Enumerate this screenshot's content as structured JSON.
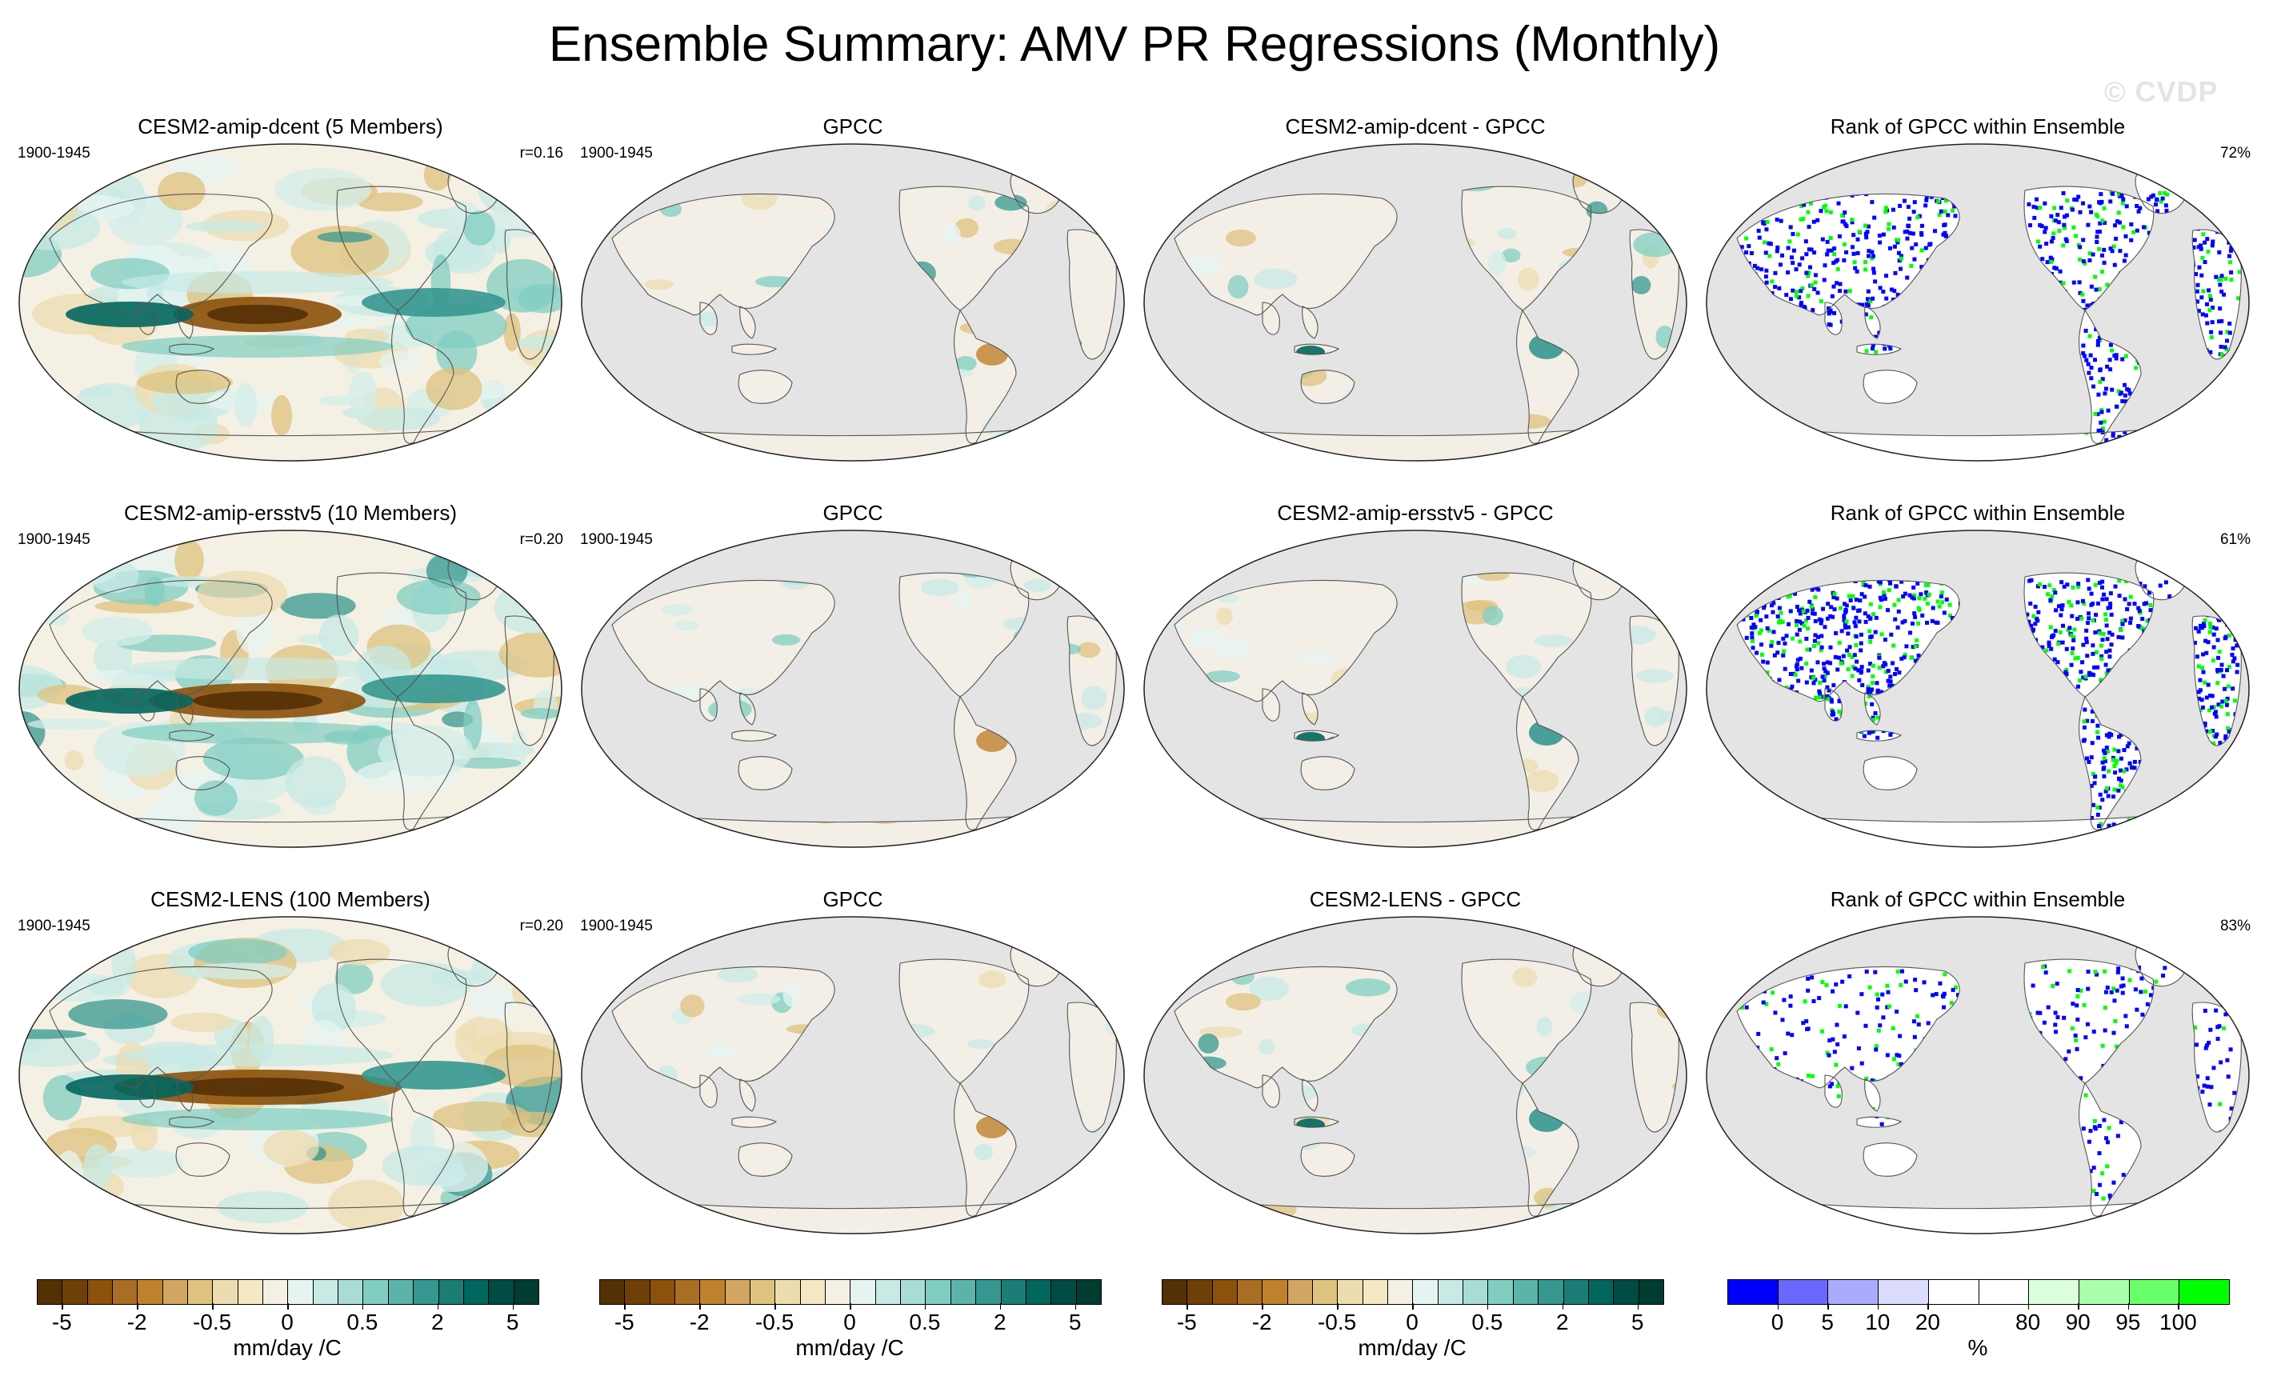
{
  "title": "Ensemble Summary: AMV PR Regressions (Monthly)",
  "watermark": "© CVDP",
  "rows": [
    {
      "model_title": "CESM2-amip-dcent (5 Members)",
      "model_period": "1900-1945",
      "model_corr": "r=0.16",
      "obs_title": "GPCC",
      "obs_period": "1900-1945",
      "diff_title": "CESM2-amip-dcent - GPCC",
      "rank_title": "Rank of GPCC within Ensemble",
      "rank_pct": "72%"
    },
    {
      "model_title": "CESM2-amip-ersstv5 (10 Members)",
      "model_period": "1900-1945",
      "model_corr": "r=0.20",
      "obs_title": "GPCC",
      "obs_period": "1900-1945",
      "diff_title": "CESM2-amip-ersstv5 - GPCC",
      "rank_title": "Rank of GPCC within Ensemble",
      "rank_pct": "61%"
    },
    {
      "model_title": "CESM2-LENS (100 Members)",
      "model_period": "1900-1945",
      "model_corr": "r=0.20",
      "obs_title": "GPCC",
      "obs_period": "1900-1945",
      "diff_title": "CESM2-LENS - GPCC",
      "rank_title": "Rank of GPCC within Ensemble",
      "rank_pct": "83%"
    }
  ],
  "colorbars": {
    "regression": {
      "unit": "mm/day /C",
      "tick_labels": [
        "-5",
        "-2",
        "-0.5",
        "0",
        "0.5",
        "2",
        "5"
      ],
      "colors": [
        "#543005",
        "#6f3f08",
        "#8c510a",
        "#a96e24",
        "#bf812d",
        "#d2a660",
        "#dfc27d",
        "#ecdcb0",
        "#f6e8c3",
        "#f5f0e4",
        "#e6f4f1",
        "#c7eae5",
        "#a8dcd4",
        "#80cdc1",
        "#5ab4a9",
        "#35978f",
        "#1a7e76",
        "#01665e",
        "#004b43",
        "#003c30"
      ]
    },
    "rank": {
      "unit": "%",
      "tick_labels": [
        "0",
        "5",
        "10",
        "20",
        "80",
        "90",
        "95",
        "100"
      ],
      "colors": [
        "#0000ff",
        "#6868ff",
        "#aaaaff",
        "#dcdcff",
        "#ffffff",
        "#ffffff",
        "#dcffdc",
        "#aaffaa",
        "#68ff68",
        "#00ff00"
      ]
    }
  },
  "chart_data": {
    "type": "heatmap",
    "title": "Ensemble Summary: AMV PR Regressions (Monthly)",
    "layout": "3 rows x 4 columns of global maps (Robinson-like projection)",
    "columns": [
      "Ensemble mean regression",
      "Observations (GPCC)",
      "Difference (ensemble - GPCC)",
      "Rank of GPCC within ensemble"
    ],
    "panels": [
      {
        "row": 1,
        "col": 1,
        "title": "CESM2-amip-dcent (5 Members)",
        "period": "1900-1945",
        "pattern_correlation": 0.16
      },
      {
        "row": 1,
        "col": 2,
        "title": "GPCC",
        "period": "1900-1945"
      },
      {
        "row": 1,
        "col": 3,
        "title": "CESM2-amip-dcent - GPCC"
      },
      {
        "row": 1,
        "col": 4,
        "title": "Rank of GPCC within Ensemble",
        "percent_area_within_10_90": 72
      },
      {
        "row": 2,
        "col": 1,
        "title": "CESM2-amip-ersstv5 (10 Members)",
        "period": "1900-1945",
        "pattern_correlation": 0.2
      },
      {
        "row": 2,
        "col": 2,
        "title": "GPCC",
        "period": "1900-1945"
      },
      {
        "row": 2,
        "col": 3,
        "title": "CESM2-amip-ersstv5 - GPCC"
      },
      {
        "row": 2,
        "col": 4,
        "title": "Rank of GPCC within Ensemble",
        "percent_area_within_10_90": 61
      },
      {
        "row": 3,
        "col": 1,
        "title": "CESM2-LENS (100 Members)",
        "period": "1900-1945",
        "pattern_correlation": 0.2
      },
      {
        "row": 3,
        "col": 2,
        "title": "GPCC",
        "period": "1900-1945"
      },
      {
        "row": 3,
        "col": 3,
        "title": "CESM2-LENS - GPCC"
      },
      {
        "row": 3,
        "col": 4,
        "title": "Rank of GPCC within Ensemble",
        "percent_area_within_10_90": 83
      }
    ],
    "regression_colorbar": {
      "unit": "mm/day /C",
      "ticks": [
        -5,
        -2,
        -0.5,
        0,
        0.5,
        2,
        5
      ]
    },
    "rank_colorbar": {
      "unit": "%",
      "ticks": [
        0,
        5,
        10,
        20,
        80,
        90,
        95,
        100
      ]
    }
  }
}
